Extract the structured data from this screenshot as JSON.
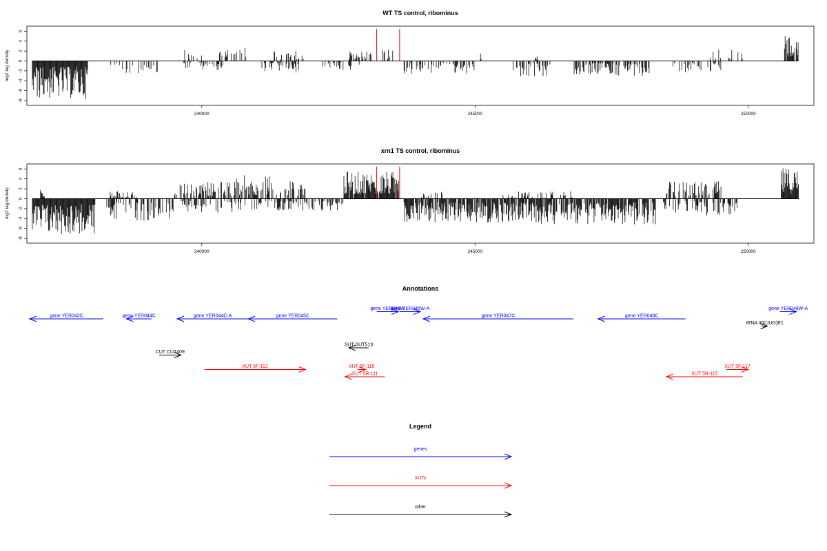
{
  "colors": {
    "gene": "#0000ff",
    "xut": "#ff0000",
    "other": "#000000",
    "marker": "#ff0000"
  },
  "chart_data": [
    {
      "type": "bar",
      "title": "WT TS control, ribominus",
      "ylabel": "log2 tag density",
      "xlim": [
        236800,
        251200
      ],
      "ylim": [
        -8,
        7
      ],
      "xticks": [
        240000,
        245000,
        250000
      ],
      "xtick_labels": [
        "240000",
        "245000",
        "250000"
      ],
      "yticks": [
        6,
        4,
        2,
        0,
        -2,
        -4,
        -6,
        -8
      ],
      "ytick_labels": [
        "6",
        "4",
        "2",
        "0",
        "-2",
        "-4",
        "-6",
        "-8"
      ],
      "markers_x": [
        243200,
        243620
      ],
      "signal": {
        "forward": [
          {
            "x0": 239620,
            "x1": 240050,
            "max": 2.5,
            "density": 0.3
          },
          {
            "x0": 240300,
            "x1": 240800,
            "max": 2.8,
            "density": 0.3
          },
          {
            "x0": 241300,
            "x1": 241900,
            "max": 2.3,
            "density": 0.35
          },
          {
            "x0": 242700,
            "x1": 243100,
            "max": 2.0,
            "density": 0.6
          },
          {
            "x0": 243300,
            "x1": 243500,
            "max": 2.5,
            "density": 0.5
          },
          {
            "x0": 245100,
            "x1": 245120,
            "max": 2.0,
            "density": 1.0
          },
          {
            "x0": 246100,
            "x1": 246150,
            "max": 1.5,
            "density": 1.0
          },
          {
            "x0": 249300,
            "x1": 249900,
            "max": 2.3,
            "density": 0.35
          },
          {
            "x0": 250650,
            "x1": 250920,
            "max": 5.5,
            "density": 0.8
          }
        ],
        "reverse": [
          {
            "x0": 236900,
            "x1": 237920,
            "max": 7.7,
            "density": 1.0
          },
          {
            "x0": 238300,
            "x1": 239200,
            "max": 2.5,
            "density": 0.35
          },
          {
            "x0": 239600,
            "x1": 240400,
            "max": 2.0,
            "density": 0.3
          },
          {
            "x0": 241100,
            "x1": 241800,
            "max": 2.5,
            "density": 0.4
          },
          {
            "x0": 242200,
            "x1": 242900,
            "max": 1.8,
            "density": 0.3
          },
          {
            "x0": 243700,
            "x1": 245000,
            "max": 2.6,
            "density": 0.45
          },
          {
            "x0": 245700,
            "x1": 246400,
            "max": 3.2,
            "density": 0.45
          },
          {
            "x0": 246800,
            "x1": 248200,
            "max": 3.0,
            "density": 0.6
          },
          {
            "x0": 248600,
            "x1": 249500,
            "max": 2.3,
            "density": 0.4
          }
        ]
      }
    },
    {
      "type": "bar",
      "title": "xrn1 TS control, ribominus",
      "ylabel": "log2 tag density",
      "xlim": [
        236800,
        251200
      ],
      "ylim": [
        -8,
        7
      ],
      "xticks": [
        240000,
        245000,
        250000
      ],
      "xtick_labels": [
        "240000",
        "245000",
        "250000"
      ],
      "yticks": [
        6,
        4,
        2,
        0,
        -2,
        -4,
        -6,
        -8
      ],
      "ytick_labels": [
        "6",
        "4",
        "2",
        "0",
        "-2",
        "-4",
        "-6",
        "-8"
      ],
      "markers_x": [
        243200,
        243620
      ],
      "signal": {
        "forward": [
          {
            "x0": 237050,
            "x1": 237120,
            "max": 1.8,
            "density": 1.0
          },
          {
            "x0": 238300,
            "x1": 238800,
            "max": 1.5,
            "density": 0.4
          },
          {
            "x0": 239500,
            "x1": 240600,
            "max": 3.5,
            "density": 0.55
          },
          {
            "x0": 240600,
            "x1": 241300,
            "max": 4.8,
            "density": 0.6
          },
          {
            "x0": 241300,
            "x1": 241900,
            "max": 4.0,
            "density": 0.5
          },
          {
            "x0": 242600,
            "x1": 243600,
            "max": 5.5,
            "density": 0.9
          },
          {
            "x0": 244000,
            "x1": 244400,
            "max": 2.0,
            "density": 0.35
          },
          {
            "x0": 245500,
            "x1": 246800,
            "max": 1.5,
            "density": 0.25
          },
          {
            "x0": 248500,
            "x1": 249500,
            "max": 3.5,
            "density": 0.55
          },
          {
            "x0": 250600,
            "x1": 250920,
            "max": 6.3,
            "density": 1.0
          }
        ],
        "reverse": [
          {
            "x0": 236900,
            "x1": 238050,
            "max": 7.3,
            "density": 1.0
          },
          {
            "x0": 238250,
            "x1": 239500,
            "max": 4.5,
            "density": 0.55
          },
          {
            "x0": 239600,
            "x1": 241200,
            "max": 2.8,
            "density": 0.35
          },
          {
            "x0": 241200,
            "x1": 242600,
            "max": 2.5,
            "density": 0.45
          },
          {
            "x0": 243700,
            "x1": 246200,
            "max": 4.8,
            "density": 0.85
          },
          {
            "x0": 246200,
            "x1": 248300,
            "max": 5.2,
            "density": 0.8
          },
          {
            "x0": 248400,
            "x1": 249800,
            "max": 3.5,
            "density": 0.45
          }
        ]
      }
    },
    {
      "type": "annotation-track",
      "title": "Annotations",
      "features": [
        {
          "label": "gene YER043C",
          "kind": "gene",
          "start": 238200,
          "end": 236850,
          "row": 0
        },
        {
          "label": "gene YER044C",
          "kind": "gene",
          "start": 239080,
          "end": 238620,
          "row": 0
        },
        {
          "label": "gene YER044C-A",
          "kind": "gene",
          "start": 240850,
          "end": 239550,
          "row": 0
        },
        {
          "label": "gene YER045C",
          "kind": "gene",
          "start": 242480,
          "end": 240850,
          "row": 0
        },
        {
          "label": "gene YER046W",
          "kind": "gene",
          "start": 243200,
          "end": 243600,
          "row": -1
        },
        {
          "label": "gene YER046W-A",
          "kind": "gene",
          "start": 243620,
          "end": 244000,
          "row": -1
        },
        {
          "label": "gene YER047C",
          "kind": "gene",
          "start": 246800,
          "end": 244050,
          "row": 0
        },
        {
          "label": "gene YER048C",
          "kind": "gene",
          "start": 248850,
          "end": 247250,
          "row": 0
        },
        {
          "label": "gene YER048W-A",
          "kind": "gene",
          "start": 250580,
          "end": 250880,
          "row": -1
        },
        {
          "label": "tRNA tQ(UUG)E1",
          "kind": "other",
          "start": 250250,
          "end": 250350,
          "row": 1
        },
        {
          "label": "SUT SUT513",
          "kind": "other",
          "start": 243050,
          "end": 242690,
          "row": 4
        },
        {
          "label": "CUT CUT409",
          "kind": "other",
          "start": 239220,
          "end": 239620,
          "row": 5
        },
        {
          "label": "XUT 5F-112",
          "kind": "xut",
          "start": 240050,
          "end": 241900,
          "row": 7
        },
        {
          "label": "XUT 5F-115",
          "kind": "xut",
          "start": 242850,
          "end": 243000,
          "row": 7
        },
        {
          "label": "XUT 5R-111",
          "kind": "xut",
          "start": 243350,
          "end": 242620,
          "row": 8
        },
        {
          "label": "XUT 5F-117",
          "kind": "xut",
          "start": 249600,
          "end": 250000,
          "row": 7
        },
        {
          "label": "XUT 5R-115",
          "kind": "xut",
          "start": 249900,
          "end": 248500,
          "row": 8
        }
      ]
    },
    {
      "type": "legend",
      "title": "Legend",
      "entries": [
        {
          "label": "genes",
          "kind": "gene"
        },
        {
          "label": "XUTs",
          "kind": "xut"
        },
        {
          "label": "other",
          "kind": "other"
        }
      ]
    }
  ]
}
